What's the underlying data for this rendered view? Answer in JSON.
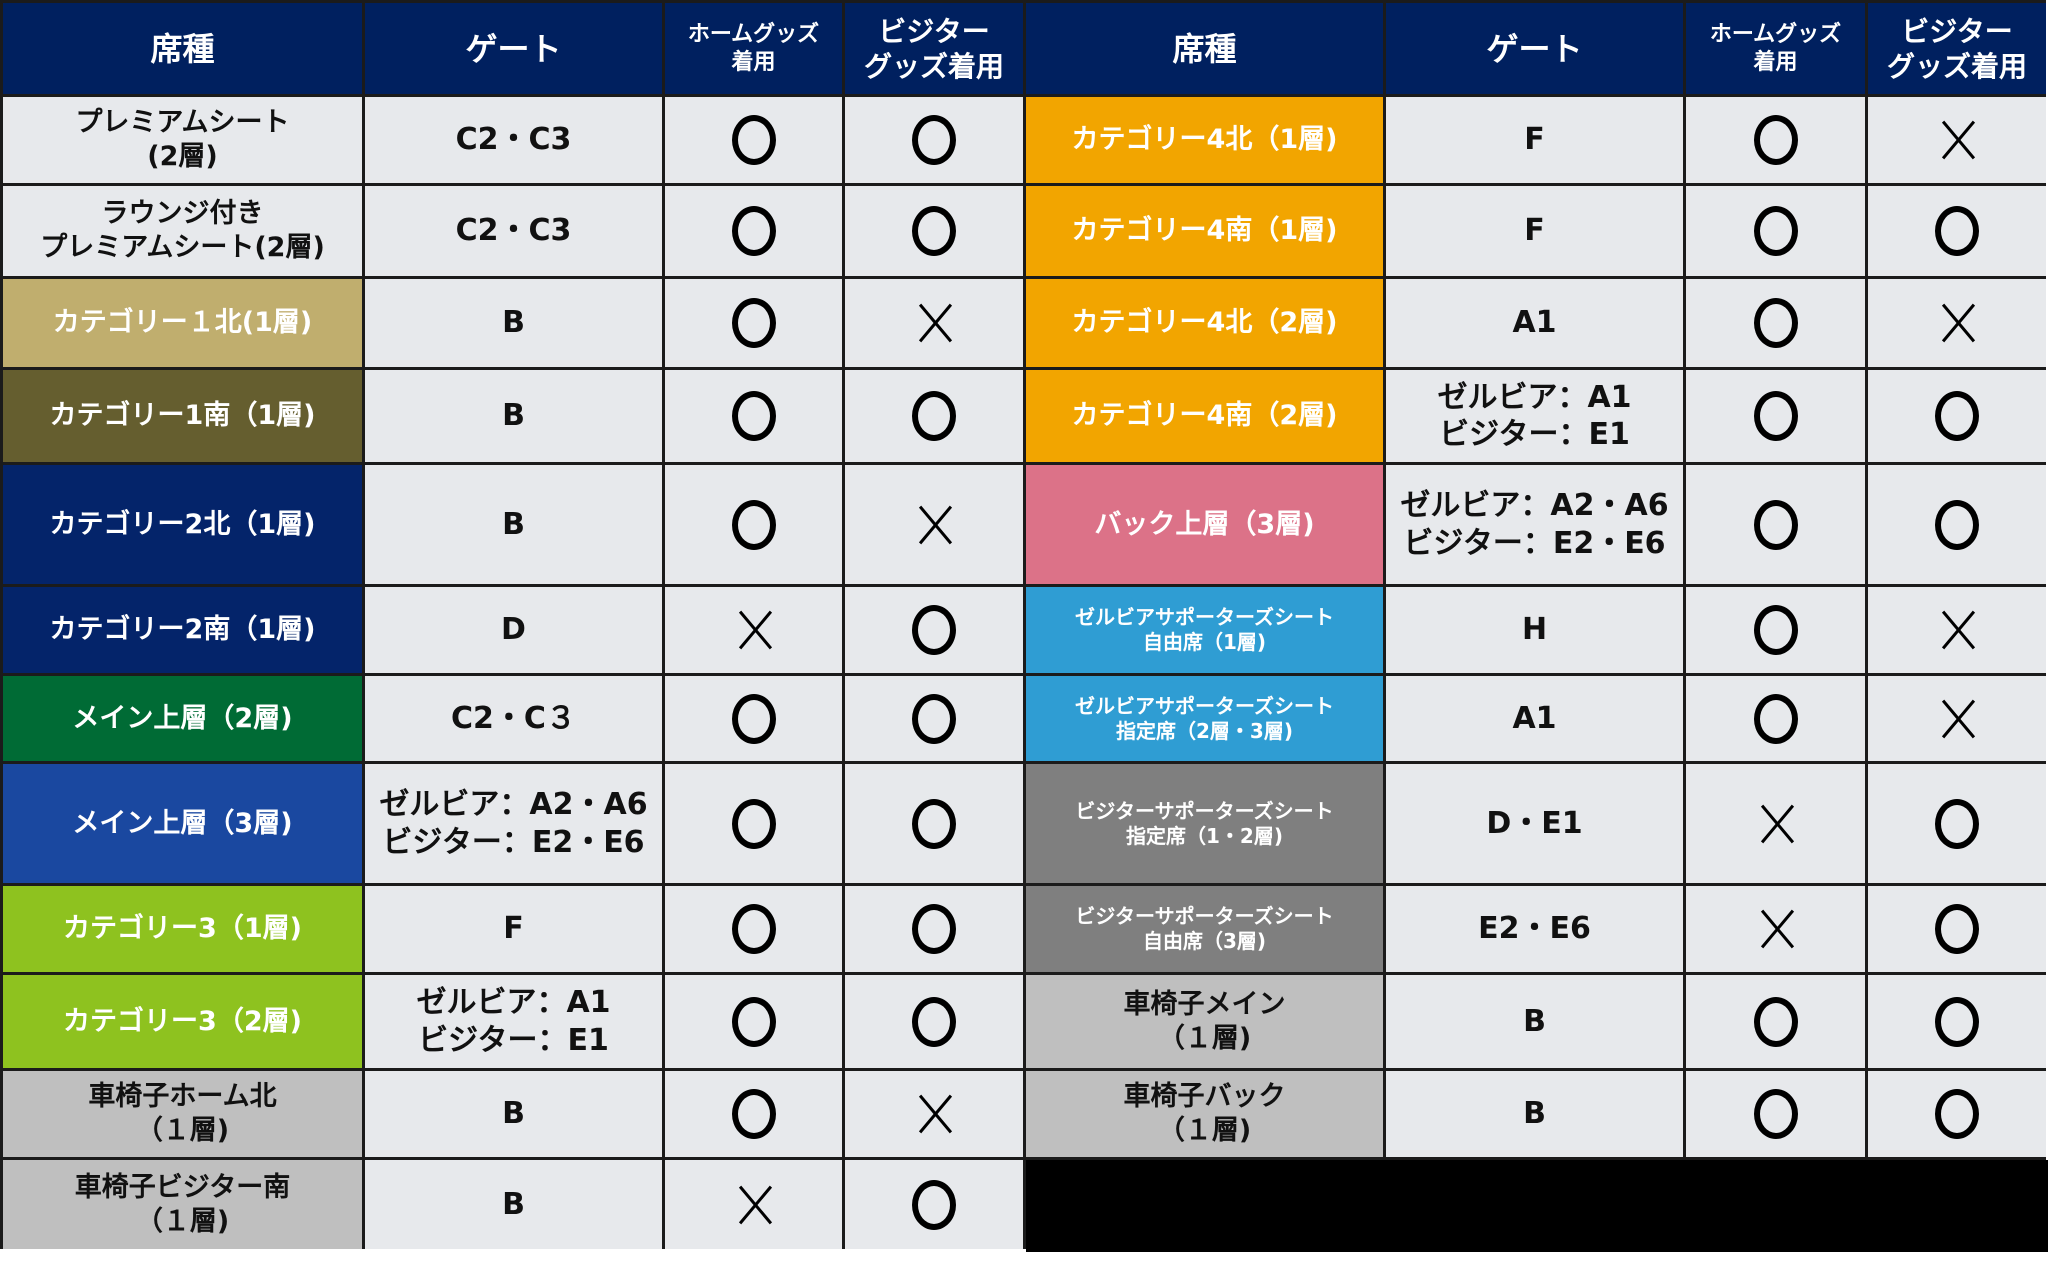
{
  "headers": [
    "席種",
    "ゲート",
    "ホームグッズ\n着用",
    "ビジター\nグッズ着用",
    "席種",
    "ゲート",
    "ホームグッズ\n着用",
    "ビジター\nグッズ着用"
  ],
  "symbols": {
    "o": "○",
    "x": "×"
  },
  "left": [
    {
      "seat": "プレミアムシート\n(2層)",
      "gate": "C2・C3",
      "home": "o",
      "visitor": "o",
      "color": "#e7e9ec",
      "dark": true
    },
    {
      "seat": "ラウンジ付き\nプレミアムシート(2層)",
      "gate": "C2・C3",
      "home": "o",
      "visitor": "o",
      "color": "#e7e9ec",
      "dark": true
    },
    {
      "seat": "カテゴリー１北(1層)",
      "gate": "B",
      "home": "o",
      "visitor": "x",
      "color": "#c0ae6e"
    },
    {
      "seat": "カテゴリー1南（1層)",
      "gate": "B",
      "home": "o",
      "visitor": "o",
      "color": "#655e2f"
    },
    {
      "seat": "カテゴリー2北（1層)",
      "gate": "B",
      "home": "o",
      "visitor": "x",
      "color": "#04246a"
    },
    {
      "seat": "カテゴリー2南（1層)",
      "gate": "D",
      "home": "x",
      "visitor": "o",
      "color": "#04246a"
    },
    {
      "seat": "メイン上層（2層)",
      "gate": "C2・C３",
      "home": "o",
      "visitor": "o",
      "color": "#006b35"
    },
    {
      "seat": "メイン上層（3層)",
      "gate": "ゼルビア：A2・A6\nビジター：E2・E6",
      "home": "o",
      "visitor": "o",
      "color": "#1a48a0"
    },
    {
      "seat": "カテゴリー3（1層)",
      "gate": "F",
      "home": "o",
      "visitor": "o",
      "color": "#8ec21f"
    },
    {
      "seat": "カテゴリー3（2層)",
      "gate": "ゼルビア：A1\nビジター：E1",
      "home": "o",
      "visitor": "o",
      "color": "#8ec21f"
    },
    {
      "seat": "車椅子ホーム北\n（１層)",
      "gate": "B",
      "home": "o",
      "visitor": "x",
      "color": "#bfbfbf",
      "dark": true
    },
    {
      "seat": "車椅子ビジター南\n（１層)",
      "gate": "B",
      "home": "x",
      "visitor": "o",
      "color": "#bfbfbf",
      "dark": true
    }
  ],
  "right": [
    {
      "seat": "カテゴリー4北（1層)",
      "gate": "F",
      "home": "o",
      "visitor": "x",
      "color": "#f2a500"
    },
    {
      "seat": "カテゴリー4南（1層)",
      "gate": "F",
      "home": "o",
      "visitor": "o",
      "color": "#f2a500"
    },
    {
      "seat": "カテゴリー4北（2層)",
      "gate": "A1",
      "home": "o",
      "visitor": "x",
      "color": "#f2a500"
    },
    {
      "seat": "カテゴリー4南（2層)",
      "gate": "ゼルビア：A1\nビジター：E1",
      "home": "o",
      "visitor": "o",
      "color": "#f2a500"
    },
    {
      "seat": "バック上層（3層)",
      "gate": "ゼルビア：A2・A6\nビジター：E2・E6",
      "home": "o",
      "visitor": "o",
      "color": "#dc7288"
    },
    {
      "seat": "ゼルビアサポーターズシート\n自由席（1層)",
      "gate": "H",
      "home": "o",
      "visitor": "x",
      "color": "#2f9dd3",
      "tiny": true
    },
    {
      "seat": "ゼルビアサポーターズシート\n指定席（2層・3層)",
      "gate": "A1",
      "home": "o",
      "visitor": "x",
      "color": "#2f9dd3",
      "tiny": true
    },
    {
      "seat": "ビジターサポーターズシート\n指定席（1・2層)",
      "gate": "D・E1",
      "home": "x",
      "visitor": "o",
      "color": "#7f7f7f",
      "tiny": true
    },
    {
      "seat": "ビジターサポーターズシート\n自由席（3層)",
      "gate": "E2・E6",
      "home": "x",
      "visitor": "o",
      "color": "#7f7f7f",
      "tiny": true
    },
    {
      "seat": "車椅子メイン\n（１層)",
      "gate": "B",
      "home": "o",
      "visitor": "o",
      "color": "#bfbfbf",
      "dark": true
    },
    {
      "seat": "車椅子バック\n（１層)",
      "gate": "B",
      "home": "o",
      "visitor": "o",
      "color": "#bfbfbf",
      "dark": true
    }
  ]
}
